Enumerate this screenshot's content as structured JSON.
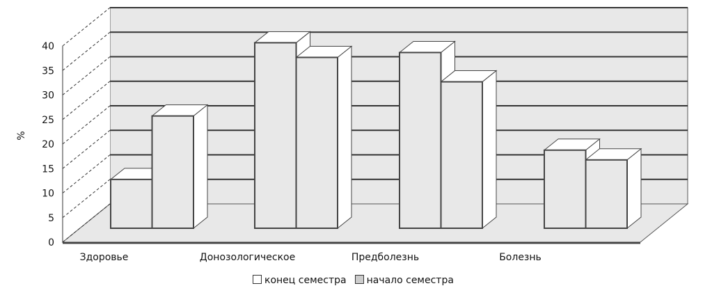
{
  "chart_data": {
    "type": "bar",
    "style": "3d-clustered",
    "title": "",
    "xlabel": "",
    "ylabel": "%",
    "ylim": [
      0,
      40
    ],
    "yticks": [
      0,
      5,
      10,
      15,
      20,
      25,
      30,
      35,
      40
    ],
    "grid": true,
    "legend_position": "bottom",
    "categories": [
      "Здоровье",
      "Донозологическое",
      "Предболезнь",
      "Болезнь"
    ],
    "series": [
      {
        "name": "конец семестра",
        "values": [
          10,
          38,
          36,
          16
        ],
        "color": "#e8e8e8"
      },
      {
        "name": "начало семестра",
        "values": [
          23,
          35,
          30,
          14
        ],
        "color": "#e8e8e8"
      }
    ]
  }
}
